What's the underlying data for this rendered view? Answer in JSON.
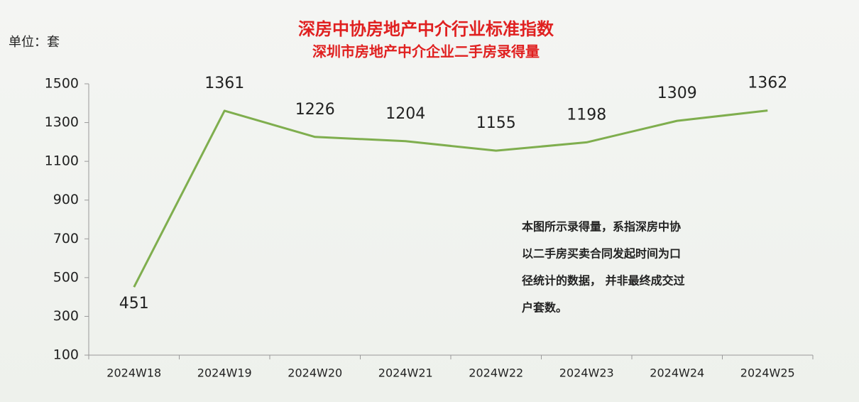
{
  "chart_data": {
    "type": "line",
    "title": "深房中协房地产中介行业标准指数",
    "subtitle": "深圳市房地产中介企业二手房录得量",
    "unit_label": "单位：套",
    "annotation": [
      "本图所示录得量，系指深房中协",
      "以二手房买卖合同发起时间为口",
      "径统计的数据， 并非最终成交过",
      "户套数。"
    ],
    "categories": [
      "2024W18",
      "2024W19",
      "2024W20",
      "2024W21",
      "2024W22",
      "2024W23",
      "2024W24",
      "2024W25"
    ],
    "values": [
      451,
      1361,
      1226,
      1204,
      1155,
      1198,
      1309,
      1362
    ],
    "color": "#7fae4e",
    "ylim": [
      100,
      1500
    ],
    "yticks": [
      100,
      300,
      500,
      700,
      900,
      1100,
      1300,
      1500
    ],
    "grid": false
  }
}
